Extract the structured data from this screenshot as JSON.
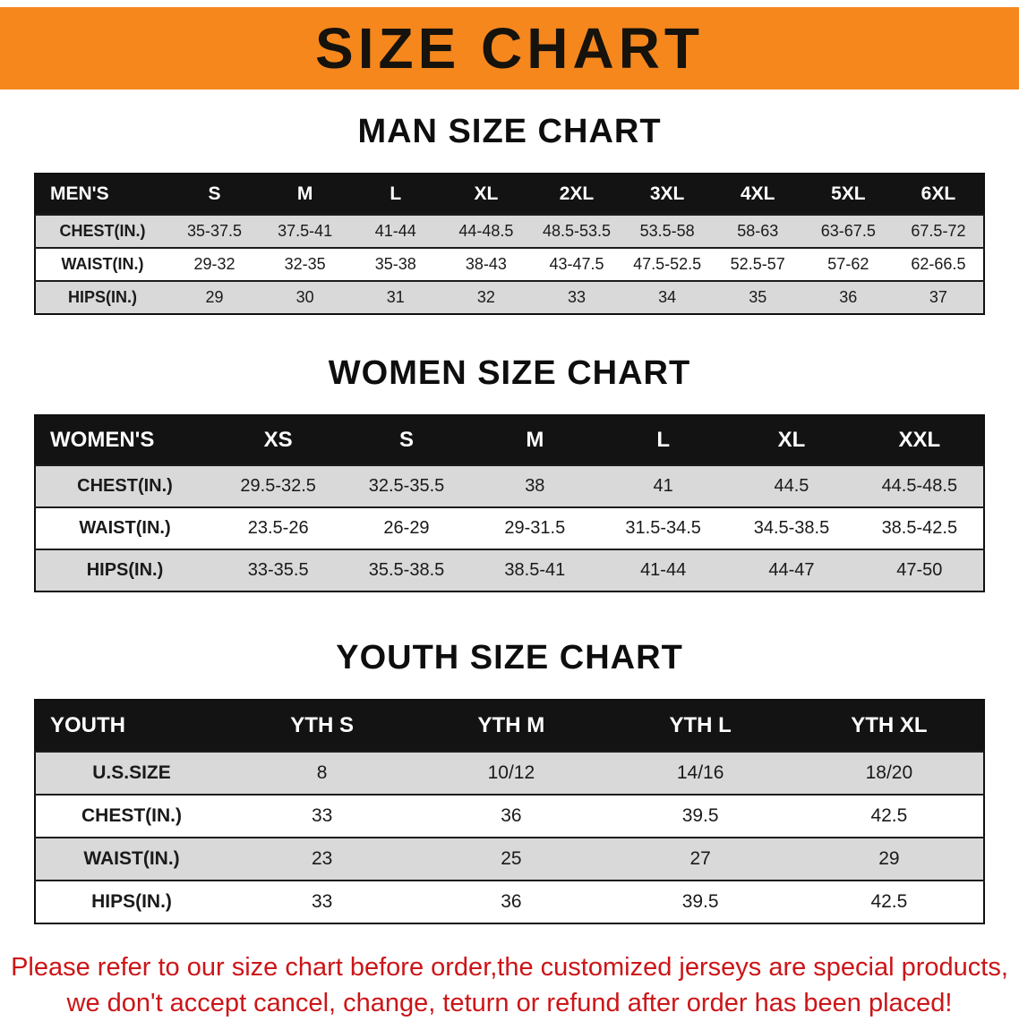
{
  "banner": {
    "title": "SIZE CHART"
  },
  "sections": [
    {
      "heading": "MAN SIZE CHART",
      "table": {
        "header": [
          "MEN'S",
          "S",
          "M",
          "L",
          "XL",
          "2XL",
          "3XL",
          "4XL",
          "5XL",
          "6XL"
        ],
        "rows": [
          [
            "CHEST(IN.)",
            "35-37.5",
            "37.5-41",
            "41-44",
            "44-48.5",
            "48.5-53.5",
            "53.5-58",
            "58-63",
            "63-67.5",
            "67.5-72"
          ],
          [
            "WAIST(IN.)",
            "29-32",
            "32-35",
            "35-38",
            "38-43",
            "43-47.5",
            "47.5-52.5",
            "52.5-57",
            "57-62",
            "62-66.5"
          ],
          [
            "HIPS(IN.)",
            "29",
            "30",
            "31",
            "32",
            "33",
            "34",
            "35",
            "36",
            "37"
          ]
        ]
      }
    },
    {
      "heading": "WOMEN SIZE CHART",
      "table": {
        "header": [
          "WOMEN'S",
          "XS",
          "S",
          "M",
          "L",
          "XL",
          "XXL"
        ],
        "rows": [
          [
            "CHEST(IN.)",
            "29.5-32.5",
            "32.5-35.5",
            "38",
            "41",
            "44.5",
            "44.5-48.5"
          ],
          [
            "WAIST(IN.)",
            "23.5-26",
            "26-29",
            "29-31.5",
            "31.5-34.5",
            "34.5-38.5",
            "38.5-42.5"
          ],
          [
            "HIPS(IN.)",
            "33-35.5",
            "35.5-38.5",
            "38.5-41",
            "41-44",
            "44-47",
            "47-50"
          ]
        ]
      }
    },
    {
      "heading": "YOUTH SIZE CHART",
      "table": {
        "header": [
          "YOUTH",
          "YTH S",
          "YTH M",
          "YTH L",
          "YTH XL"
        ],
        "rows": [
          [
            "U.S.SIZE",
            "8",
            "10/12",
            "14/16",
            "18/20"
          ],
          [
            "CHEST(IN.)",
            "33",
            "36",
            "39.5",
            "42.5"
          ],
          [
            "WAIST(IN.)",
            "23",
            "25",
            "27",
            "29"
          ],
          [
            "HIPS(IN.)",
            "33",
            "36",
            "39.5",
            "42.5"
          ]
        ]
      }
    }
  ],
  "note": {
    "line1": "Please refer to our size chart before order,the customized jerseys are special products,",
    "line2": "we don't accept cancel, change, teturn or refund after order has been placed!"
  },
  "colors": {
    "banner_bg": "#f5871d",
    "table_header_bg": "#131313",
    "row_shade": "#d9d9d9",
    "note_text": "#cc1518"
  }
}
